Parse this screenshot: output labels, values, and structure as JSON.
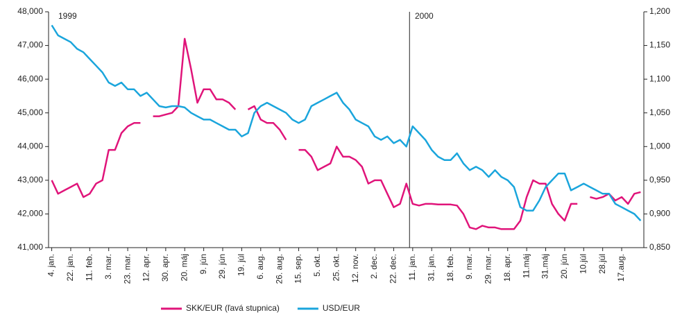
{
  "chart_data": {
    "type": "line",
    "annotations": [
      "1999",
      "2000"
    ],
    "categories": [
      "4. jan.",
      null,
      null,
      "22. jan.",
      null,
      null,
      "11. feb.",
      null,
      null,
      "3. mar.",
      null,
      null,
      "23. mar.",
      null,
      null,
      "12. apr.",
      null,
      null,
      "30. apr.",
      null,
      null,
      "20. máj",
      null,
      null,
      "9. jún",
      null,
      null,
      "29. jún",
      null,
      null,
      "19. júl",
      null,
      null,
      "6. aug.",
      null,
      null,
      "26. aug.",
      null,
      null,
      "15. sep.",
      null,
      null,
      "5. okt.",
      null,
      null,
      "25. okt.",
      null,
      null,
      "12. nov.",
      null,
      null,
      "2. dec.",
      null,
      null,
      "22. dec.",
      null,
      null,
      "11. jan.",
      null,
      null,
      "31. jan.",
      null,
      null,
      "18. feb.",
      null,
      null,
      "9. mar.",
      null,
      null,
      "29. mar.",
      null,
      null,
      "18. apr.",
      null,
      null,
      "11.máj",
      null,
      null,
      "31.máj",
      null,
      null,
      "20. jún",
      null,
      null,
      "10.júl",
      null,
      null,
      "28.júl",
      null,
      null,
      "17.aug.",
      null,
      null,
      null
    ],
    "series": [
      {
        "name": "SKK/EUR (ľavá stupnica)",
        "color": "#e0147a",
        "axis": "y",
        "values": [
          43000,
          42600,
          42700,
          42800,
          42900,
          42500,
          42600,
          42900,
          43000,
          43900,
          43900,
          44400,
          44600,
          44700,
          44700,
          null,
          44900,
          44900,
          44950,
          45000,
          45200,
          47200,
          46300,
          45300,
          45700,
          45700,
          45400,
          45400,
          45300,
          45100,
          null,
          45100,
          45200,
          44800,
          44700,
          44700,
          44500,
          44200,
          null,
          43900,
          43900,
          43700,
          43300,
          43400,
          43500,
          44000,
          43700,
          43700,
          43600,
          43400,
          42900,
          43000,
          43000,
          42600,
          42200,
          42300,
          42900,
          42300,
          42250,
          42300,
          42300,
          42280,
          42280,
          42280,
          42250,
          42000,
          41600,
          41550,
          41650,
          41600,
          41600,
          41550,
          41550,
          41550,
          41800,
          42500,
          43000,
          42900,
          42900,
          42300,
          42000,
          41800,
          42300,
          42300,
          null,
          42500,
          42450,
          42500,
          42600,
          42400,
          42500,
          42300,
          42600,
          42650
        ]
      },
      {
        "name": "USD/EUR",
        "color": "#1aa5dc",
        "axis": "y2",
        "values": [
          1.18,
          1.165,
          1.16,
          1.155,
          1.145,
          1.14,
          1.13,
          1.12,
          1.11,
          1.095,
          1.09,
          1.095,
          1.085,
          1.085,
          1.075,
          1.08,
          1.07,
          1.06,
          1.058,
          1.06,
          1.06,
          1.058,
          1.05,
          1.045,
          1.04,
          1.04,
          1.035,
          1.03,
          1.025,
          1.025,
          1.015,
          1.02,
          1.05,
          1.06,
          1.065,
          1.06,
          1.055,
          1.05,
          1.04,
          1.035,
          1.04,
          1.06,
          1.065,
          1.07,
          1.075,
          1.08,
          1.065,
          1.055,
          1.04,
          1.035,
          1.03,
          1.015,
          1.01,
          1.015,
          1.005,
          1.01,
          1.0,
          1.03,
          1.02,
          1.01,
          0.995,
          0.985,
          0.98,
          0.98,
          0.99,
          0.975,
          0.965,
          0.97,
          0.965,
          0.955,
          0.965,
          0.955,
          0.95,
          0.94,
          0.91,
          0.905,
          0.905,
          0.92,
          0.94,
          0.95,
          0.96,
          0.96,
          0.935,
          0.94,
          0.945,
          0.94,
          0.935,
          0.93,
          0.93,
          0.915,
          0.91,
          0.905,
          0.9,
          0.89
        ]
      }
    ],
    "ylim": [
      41000,
      48000
    ],
    "yticks": [
      {
        "value": 41000,
        "label": "41,000"
      },
      {
        "value": 42000,
        "label": "42,000"
      },
      {
        "value": 43000,
        "label": "43,000"
      },
      {
        "value": 44000,
        "label": "44,000"
      },
      {
        "value": 45000,
        "label": "45,000"
      },
      {
        "value": 46000,
        "label": "46,000"
      },
      {
        "value": 47000,
        "label": "47,000"
      },
      {
        "value": 48000,
        "label": "48,000"
      }
    ],
    "y2lim": [
      0.85,
      1.2
    ],
    "y2ticks": [
      {
        "value": 0.85,
        "label": "0,850"
      },
      {
        "value": 0.9,
        "label": "0,900"
      },
      {
        "value": 0.95,
        "label": "0,950"
      },
      {
        "value": 1.0,
        "label": "1,000"
      },
      {
        "value": 1.05,
        "label": "1,050"
      },
      {
        "value": 1.1,
        "label": "1,100"
      },
      {
        "value": 1.15,
        "label": "1,150"
      },
      {
        "value": 1.2,
        "label": "1,200"
      }
    ],
    "legend": "bottom"
  }
}
